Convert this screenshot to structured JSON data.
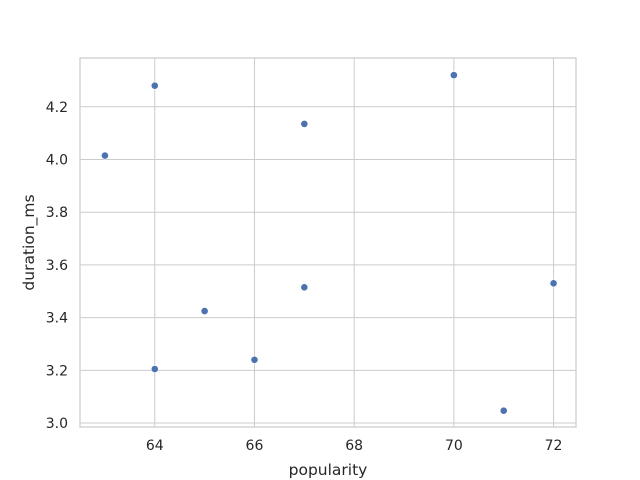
{
  "chart_data": {
    "type": "scatter",
    "title": "",
    "xlabel": "popularity",
    "ylabel": "duration_ms",
    "xlim": [
      62.5,
      72.45
    ],
    "ylim": [
      2.985,
      4.385
    ],
    "xticks": [
      64,
      66,
      68,
      70,
      72
    ],
    "yticks": [
      3.0,
      3.2,
      3.4,
      3.6,
      3.8,
      4.0,
      4.2
    ],
    "xtick_labels": [
      "64",
      "66",
      "68",
      "70",
      "72"
    ],
    "ytick_labels": [
      "3.0",
      "3.2",
      "3.4",
      "3.6",
      "3.8",
      "4.0",
      "4.2"
    ],
    "grid": true,
    "point_color": "#4c72b0",
    "points": [
      {
        "x": 63,
        "y": 4.015
      },
      {
        "x": 64,
        "y": 4.28
      },
      {
        "x": 64,
        "y": 3.205
      },
      {
        "x": 65,
        "y": 3.425
      },
      {
        "x": 66,
        "y": 3.24
      },
      {
        "x": 67,
        "y": 4.135
      },
      {
        "x": 67,
        "y": 3.515
      },
      {
        "x": 70,
        "y": 4.32
      },
      {
        "x": 71,
        "y": 3.047
      },
      {
        "x": 72,
        "y": 3.53
      }
    ]
  }
}
